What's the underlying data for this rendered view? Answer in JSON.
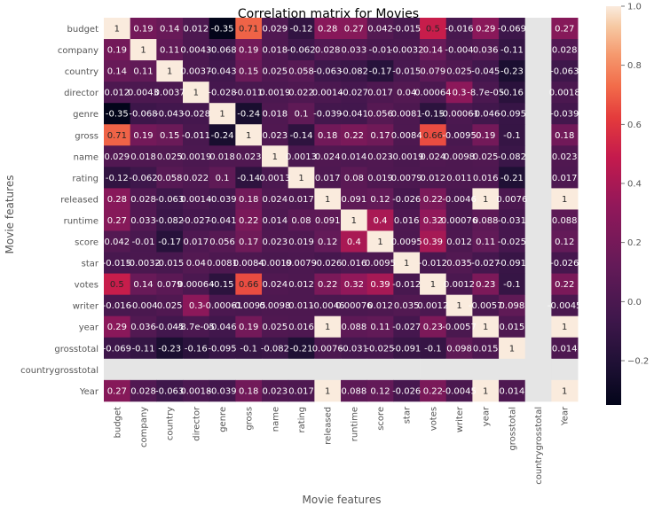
{
  "chart_data": {
    "type": "heatmap",
    "title": "Correlation matrix for Movies",
    "xlabel": "Movie features",
    "ylabel": "Movie features",
    "grid": false,
    "legend": "colorbar-right",
    "colorbar_range": [
      -0.35,
      1.0
    ],
    "colorbar_ticks": [
      "1.0",
      "0.8",
      "0.6",
      "0.4",
      "0.2",
      "0.0",
      "−0.2"
    ],
    "colorbar_tick_values": [
      1.0,
      0.8,
      0.6,
      0.4,
      0.2,
      0.0,
      -0.2
    ],
    "rows": [
      "budget",
      "company",
      "country",
      "director",
      "genre",
      "gross",
      "name",
      "rating",
      "released",
      "runtime",
      "score",
      "star",
      "votes",
      "writer",
      "year",
      "grosstotal",
      "countrygrosstotal",
      "Year"
    ],
    "columns": [
      "budget",
      "company",
      "country",
      "director",
      "genre",
      "gross",
      "name",
      "rating",
      "released",
      "runtime",
      "score",
      "star",
      "votes",
      "writer",
      "year",
      "grosstotal",
      "countrygrosstotal",
      "Year"
    ],
    "values": [
      [
        1,
        0.19,
        0.14,
        0.012,
        -0.35,
        0.71,
        0.029,
        -0.12,
        0.28,
        0.27,
        0.042,
        -0.015,
        0.5,
        -0.016,
        0.29,
        -0.069,
        null,
        0.27
      ],
      [
        0.19,
        1,
        0.11,
        0.0043,
        -0.068,
        0.19,
        0.018,
        -0.062,
        0.028,
        0.033,
        -0.01,
        -0.0032,
        0.14,
        -0.004,
        0.036,
        -0.11,
        null,
        0.028
      ],
      [
        0.14,
        0.11,
        1,
        0.0037,
        -0.043,
        0.15,
        0.025,
        0.058,
        -0.063,
        -0.082,
        -0.17,
        -0.015,
        0.079,
        0.025,
        -0.045,
        -0.23,
        null,
        -0.063
      ],
      [
        0.012,
        0.0043,
        0.0037,
        1,
        -0.028,
        -0.011,
        0.0019,
        0.022,
        0.0014,
        -0.027,
        0.017,
        0.04,
        0.00064,
        0.3,
        -8.7e-05,
        -0.16,
        null,
        0.0018
      ],
      [
        -0.35,
        -0.068,
        -0.043,
        -0.028,
        1,
        -0.24,
        0.018,
        0.1,
        -0.039,
        -0.041,
        0.056,
        0.0081,
        -0.15,
        -0.00061,
        -0.046,
        -0.095,
        null,
        -0.039
      ],
      [
        0.71,
        0.19,
        0.15,
        -0.011,
        -0.24,
        1,
        0.023,
        -0.14,
        0.18,
        0.22,
        0.17,
        0.0084,
        0.66,
        -0.0095,
        0.19,
        -0.1,
        null,
        0.18
      ],
      [
        0.029,
        0.018,
        0.025,
        0.0019,
        0.018,
        0.023,
        1,
        0.0013,
        0.024,
        0.014,
        0.023,
        -0.0019,
        0.024,
        0.0098,
        0.025,
        -0.082,
        null,
        0.023
      ],
      [
        -0.12,
        -0.062,
        0.058,
        0.022,
        0.1,
        -0.14,
        0.0013,
        1,
        0.017,
        0.08,
        0.019,
        0.0079,
        0.012,
        0.011,
        0.016,
        -0.21,
        null,
        0.017
      ],
      [
        0.28,
        0.028,
        -0.063,
        0.0014,
        -0.039,
        0.18,
        0.024,
        0.017,
        1,
        0.091,
        0.12,
        -0.026,
        0.22,
        -0.0046,
        1,
        0.0076,
        null,
        1
      ],
      [
        0.27,
        0.033,
        -0.082,
        -0.027,
        -0.041,
        0.22,
        0.014,
        0.08,
        0.091,
        1,
        0.4,
        0.016,
        0.32,
        0.00076,
        0.088,
        -0.031,
        null,
        0.088
      ],
      [
        0.042,
        -0.01,
        -0.17,
        0.017,
        0.056,
        0.17,
        0.023,
        0.019,
        0.12,
        0.4,
        1,
        0.0095,
        0.39,
        0.012,
        0.11,
        -0.025,
        null,
        0.12
      ],
      [
        -0.015,
        -0.0032,
        -0.015,
        0.04,
        0.0081,
        0.0084,
        -0.0019,
        0.0079,
        -0.026,
        0.016,
        0.0095,
        1,
        -0.012,
        0.035,
        -0.027,
        -0.091,
        null,
        -0.026
      ],
      [
        0.5,
        0.14,
        0.079,
        0.00064,
        -0.15,
        0.66,
        0.024,
        0.012,
        0.22,
        0.32,
        0.39,
        -0.012,
        1,
        0.0012,
        0.23,
        -0.1,
        null,
        0.22
      ],
      [
        -0.016,
        -0.004,
        0.025,
        0.3,
        -0.00061,
        -0.0095,
        0.0098,
        0.011,
        -0.0046,
        0.00076,
        0.012,
        0.035,
        0.0012,
        1,
        -0.0057,
        0.098,
        null,
        -0.0045
      ],
      [
        0.29,
        0.036,
        -0.045,
        -8.7e-05,
        -0.046,
        0.19,
        0.025,
        0.016,
        1,
        0.088,
        0.11,
        -0.027,
        0.23,
        -0.0057,
        1,
        0.015,
        null,
        1
      ],
      [
        -0.069,
        -0.11,
        -0.23,
        -0.16,
        -0.095,
        -0.1,
        -0.082,
        -0.21,
        0.0076,
        -0.031,
        -0.025,
        -0.091,
        -0.1,
        0.098,
        0.015,
        1,
        null,
        0.014
      ],
      [
        null,
        null,
        null,
        null,
        null,
        null,
        null,
        null,
        null,
        null,
        null,
        null,
        null,
        null,
        null,
        null,
        null,
        null
      ],
      [
        0.27,
        0.028,
        -0.063,
        0.0018,
        -0.039,
        0.18,
        0.023,
        0.017,
        1,
        0.088,
        0.12,
        -0.026,
        0.22,
        -0.0045,
        1,
        0.014,
        null,
        1
      ]
    ],
    "labels": [
      [
        "1",
        "0.19",
        "0.14",
        "0.012",
        "-0.35",
        "0.71",
        "0.029",
        "-0.12",
        "0.28",
        "0.27",
        "0.042",
        "-0.015",
        "0.5",
        "-0.016",
        "0.29",
        "-0.069",
        "",
        "0.27"
      ],
      [
        "0.19",
        "1",
        "0.11",
        "0.0043",
        "-0.068",
        "0.19",
        "0.018",
        "-0.062",
        "0.028",
        "0.033",
        "-0.01",
        "-0.0032",
        "0.14",
        "-0.004",
        "0.036",
        "-0.11",
        "",
        "0.028"
      ],
      [
        "0.14",
        "0.11",
        "1",
        "0.0037",
        "-0.043",
        "0.15",
        "0.025",
        "0.058",
        "-0.063",
        "-0.082",
        "-0.17",
        "-0.015",
        "0.079",
        "0.025",
        "-0.045",
        "-0.23",
        "",
        "-0.063"
      ],
      [
        "0.012",
        "0.0043",
        "0.0037",
        "1",
        "-0.028",
        "-0.011",
        "0.0019",
        "0.022",
        "0.0014",
        "-0.027",
        "0.017",
        "0.04",
        "0.00064",
        "0.3",
        "-8.7e-05",
        "-0.16",
        "",
        "0.0018"
      ],
      [
        "-0.35",
        "-0.068",
        "-0.043",
        "-0.028",
        "1",
        "-0.24",
        "0.018",
        "0.1",
        "-0.039",
        "-0.041",
        "0.056",
        "0.0081",
        "-0.15",
        "-0.00061",
        "-0.046",
        "-0.095",
        "",
        "-0.039"
      ],
      [
        "0.71",
        "0.19",
        "0.15",
        "-0.011",
        "-0.24",
        "1",
        "0.023",
        "-0.14",
        "0.18",
        "0.22",
        "0.17",
        "0.0084",
        "0.66",
        "-0.0095",
        "0.19",
        "-0.1",
        "",
        "0.18"
      ],
      [
        "0.029",
        "0.018",
        "0.025",
        "0.0019",
        "0.018",
        "0.023",
        "1",
        "0.0013",
        "0.024",
        "0.014",
        "0.023",
        "-0.0019",
        "0.024",
        "0.0098",
        "0.025",
        "-0.082",
        "",
        "0.023"
      ],
      [
        "-0.12",
        "-0.062",
        "0.058",
        "0.022",
        "0.1",
        "-0.14",
        "0.0013",
        "1",
        "0.017",
        "0.08",
        "0.019",
        "0.0079",
        "0.012",
        "0.011",
        "0.016",
        "-0.21",
        "",
        "0.017"
      ],
      [
        "0.28",
        "0.028",
        "-0.063",
        "0.0014",
        "-0.039",
        "0.18",
        "0.024",
        "0.017",
        "1",
        "0.091",
        "0.12",
        "-0.026",
        "0.22",
        "-0.0046",
        "1",
        "0.0076",
        "",
        "1"
      ],
      [
        "0.27",
        "0.033",
        "-0.082",
        "-0.027",
        "-0.041",
        "0.22",
        "0.014",
        "0.08",
        "0.091",
        "1",
        "0.4",
        "0.016",
        "0.32",
        "0.00076",
        "0.088",
        "-0.031",
        "",
        "0.088"
      ],
      [
        "0.042",
        "-0.01",
        "-0.17",
        "0.017",
        "0.056",
        "0.17",
        "0.023",
        "0.019",
        "0.12",
        "0.4",
        "1",
        "0.0095",
        "0.39",
        "0.012",
        "0.11",
        "-0.025",
        "",
        "0.12"
      ],
      [
        "-0.015",
        "-0.0032",
        "-0.015",
        "0.04",
        "0.0081",
        "0.0084",
        "-0.0019",
        "0.0079",
        "-0.026",
        "0.016",
        "0.0095",
        "1",
        "-0.012",
        "0.035",
        "-0.027",
        "-0.091",
        "",
        "-0.026"
      ],
      [
        "0.5",
        "0.14",
        "0.079",
        "0.00064",
        "-0.15",
        "0.66",
        "0.024",
        "0.012",
        "0.22",
        "0.32",
        "0.39",
        "-0.012",
        "1",
        "0.0012",
        "0.23",
        "-0.1",
        "",
        "0.22"
      ],
      [
        "-0.016",
        "-0.004",
        "0.025",
        "0.3",
        "-0.00061",
        "-0.0095",
        "0.0098",
        "0.011",
        "-0.0046",
        "0.00076",
        "0.012",
        "0.035",
        "0.0012",
        "1",
        "-0.0057",
        "0.098",
        "",
        "-0.0045"
      ],
      [
        "0.29",
        "0.036",
        "-0.045",
        "-8.7e-05",
        "-0.046",
        "0.19",
        "0.025",
        "0.016",
        "1",
        "0.088",
        "0.11",
        "-0.027",
        "0.23",
        "-0.0057",
        "1",
        "0.015",
        "",
        "1"
      ],
      [
        "-0.069",
        "-0.11",
        "-0.23",
        "-0.16",
        "-0.095",
        "-0.1",
        "-0.082",
        "-0.21",
        "0.0076",
        "-0.031",
        "-0.025",
        "-0.091",
        "-0.1",
        "0.098",
        "0.015",
        "1",
        "",
        "0.014"
      ],
      [
        "",
        "",
        "",
        "",
        "",
        "",
        "",
        "",
        "",
        "",
        "",
        "",
        "",
        "",
        "",
        "",
        "",
        ""
      ],
      [
        "0.27",
        "0.028",
        "-0.063",
        "0.0018",
        "-0.039",
        "0.18",
        "0.023",
        "0.017",
        "1",
        "0.088",
        "0.12",
        "-0.026",
        "0.22",
        "-0.0045",
        "1",
        "0.014",
        "",
        "1"
      ]
    ],
    "colors": {
      "missing_cell": "#e5e5e5",
      "text_light": "#ffffff",
      "text_dark": "#262626",
      "axis_text": "#555555",
      "title_text": "#000000"
    }
  }
}
